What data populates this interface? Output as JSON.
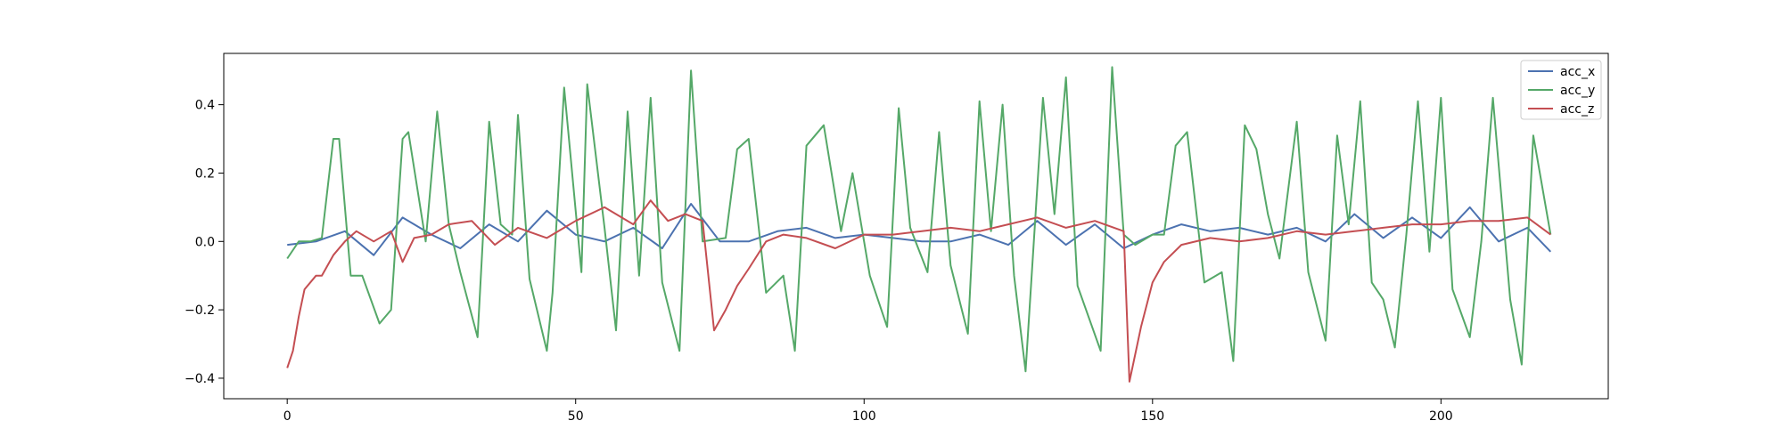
{
  "chart_data": {
    "type": "line",
    "title": "",
    "xlabel": "",
    "ylabel": "",
    "xlim": [
      -11,
      229
    ],
    "ylim": [
      -0.46,
      0.55
    ],
    "xticks": [
      0,
      50,
      100,
      150,
      200
    ],
    "yticks": [
      -0.4,
      -0.2,
      0.0,
      0.2,
      0.4
    ],
    "ytick_labels": [
      "−0.4",
      "−0.2",
      "0.0",
      "0.2",
      "0.4"
    ],
    "grid": false,
    "legend_position": "top-right",
    "series": [
      {
        "name": "acc_x",
        "color": "#4c72b0",
        "x": [
          0,
          5,
          10,
          15,
          20,
          25,
          30,
          35,
          40,
          45,
          50,
          55,
          60,
          65,
          70,
          75,
          80,
          85,
          90,
          95,
          100,
          105,
          110,
          115,
          120,
          125,
          130,
          135,
          140,
          145,
          150,
          155,
          160,
          165,
          170,
          175,
          180,
          185,
          190,
          195,
          200,
          205,
          210,
          215,
          219
        ],
        "y": [
          -0.01,
          0.0,
          0.03,
          -0.04,
          0.07,
          0.02,
          -0.02,
          0.05,
          0.0,
          0.09,
          0.02,
          0.0,
          0.04,
          -0.02,
          0.11,
          0.0,
          0.0,
          0.03,
          0.04,
          0.01,
          0.02,
          0.01,
          0.0,
          0.0,
          0.02,
          -0.01,
          0.06,
          -0.01,
          0.05,
          -0.02,
          0.02,
          0.05,
          0.03,
          0.04,
          0.02,
          0.04,
          0.0,
          0.08,
          0.01,
          0.07,
          0.01,
          0.1,
          0.0,
          0.04,
          -0.03
        ]
      },
      {
        "name": "acc_y",
        "color": "#55a868",
        "x": [
          0,
          2,
          4,
          6,
          8,
          9,
          11,
          13,
          16,
          18,
          20,
          21,
          24,
          26,
          28,
          30,
          33,
          35,
          37,
          39,
          40,
          42,
          45,
          46,
          48,
          51,
          52,
          55,
          57,
          59,
          61,
          63,
          65,
          68,
          70,
          72,
          76,
          78,
          80,
          83,
          86,
          88,
          90,
          93,
          96,
          98,
          101,
          104,
          106,
          108,
          111,
          113,
          115,
          118,
          120,
          122,
          124,
          126,
          128,
          131,
          133,
          135,
          137,
          141,
          143,
          145,
          147,
          150,
          152,
          154,
          156,
          159,
          162,
          164,
          166,
          168,
          170,
          172,
          175,
          177,
          180,
          182,
          184,
          186,
          188,
          190,
          192,
          194,
          196,
          198,
          200,
          202,
          205,
          207,
          209,
          212,
          214,
          216,
          219
        ],
        "y": [
          -0.05,
          0.0,
          0.0,
          0.01,
          0.3,
          0.3,
          -0.1,
          -0.1,
          -0.24,
          -0.2,
          0.3,
          0.32,
          0.0,
          0.38,
          0.05,
          -0.09,
          -0.28,
          0.35,
          0.05,
          0.02,
          0.37,
          -0.11,
          -0.32,
          -0.15,
          0.45,
          -0.09,
          0.46,
          0.04,
          -0.26,
          0.38,
          -0.1,
          0.42,
          -0.12,
          -0.32,
          0.5,
          0.0,
          0.01,
          0.27,
          0.3,
          -0.15,
          -0.1,
          -0.32,
          0.28,
          0.34,
          0.03,
          0.2,
          -0.1,
          -0.25,
          0.39,
          0.04,
          -0.09,
          0.32,
          -0.07,
          -0.27,
          0.41,
          0.03,
          0.4,
          -0.1,
          -0.38,
          0.42,
          0.08,
          0.48,
          -0.13,
          -0.32,
          0.51,
          0.02,
          -0.01,
          0.02,
          0.02,
          0.28,
          0.32,
          -0.12,
          -0.09,
          -0.35,
          0.34,
          0.27,
          0.08,
          -0.05,
          0.35,
          -0.09,
          -0.29,
          0.31,
          0.05,
          0.41,
          -0.12,
          -0.17,
          -0.31,
          0.02,
          0.41,
          -0.03,
          0.42,
          -0.14,
          -0.28,
          0.0,
          0.42,
          -0.17,
          -0.36,
          0.31,
          0.02
        ]
      },
      {
        "name": "acc_z",
        "color": "#c44e52",
        "x": [
          0,
          1,
          2,
          3,
          5,
          6,
          8,
          10,
          12,
          15,
          18,
          20,
          22,
          25,
          28,
          32,
          36,
          40,
          45,
          50,
          55,
          60,
          63,
          66,
          69,
          72,
          74,
          76,
          78,
          80,
          83,
          86,
          90,
          95,
          100,
          105,
          110,
          115,
          120,
          125,
          130,
          135,
          140,
          145,
          146,
          148,
          150,
          152,
          155,
          160,
          165,
          170,
          175,
          180,
          185,
          190,
          195,
          200,
          205,
          210,
          215,
          219
        ],
        "y": [
          -0.37,
          -0.32,
          -0.22,
          -0.14,
          -0.1,
          -0.1,
          -0.04,
          0.0,
          0.03,
          0.0,
          0.03,
          -0.06,
          0.01,
          0.02,
          0.05,
          0.06,
          -0.01,
          0.04,
          0.01,
          0.06,
          0.1,
          0.05,
          0.12,
          0.06,
          0.08,
          0.06,
          -0.26,
          -0.2,
          -0.13,
          -0.08,
          0.0,
          0.02,
          0.01,
          -0.02,
          0.02,
          0.02,
          0.03,
          0.04,
          0.03,
          0.05,
          0.07,
          0.04,
          0.06,
          0.03,
          -0.41,
          -0.25,
          -0.12,
          -0.06,
          -0.01,
          0.01,
          0.0,
          0.01,
          0.03,
          0.02,
          0.03,
          0.04,
          0.05,
          0.05,
          0.06,
          0.06,
          0.07,
          0.02
        ]
      }
    ]
  }
}
